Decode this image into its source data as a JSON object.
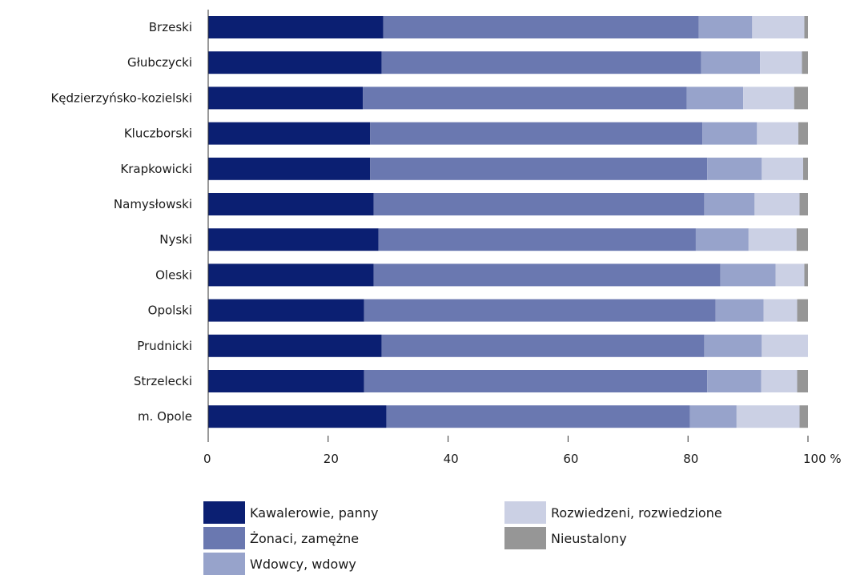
{
  "chart_data": {
    "type": "bar",
    "orientation": "horizontal",
    "stacked": true,
    "categories": [
      "Brzeski",
      "Głubczycki",
      "Kędzierzyńsko-kozielski",
      "Kluczborski",
      "Krapkowicki",
      "Namysłowski",
      "Nyski",
      "Oleski",
      "Opolski",
      "Prudnicki",
      "Strzelecki",
      "m. Opole"
    ],
    "series": [
      {
        "name": "Kawalerowie, panny",
        "color": "#0b1f72",
        "values": [
          29.2,
          28.9,
          25.8,
          27.0,
          27.0,
          27.6,
          28.4,
          27.6,
          26.0,
          28.9,
          26.0,
          29.7
        ]
      },
      {
        "name": "Żonaci, zamężne",
        "color": "#6a78b0",
        "values": [
          52.6,
          53.3,
          54.0,
          55.4,
          56.2,
          55.1,
          52.9,
          57.8,
          58.6,
          53.8,
          57.2,
          50.6
        ]
      },
      {
        "name": "Wdowcy, wdowy",
        "color": "#97a3cb",
        "values": [
          8.9,
          9.8,
          9.4,
          9.1,
          9.1,
          8.4,
          8.8,
          9.2,
          8.0,
          9.6,
          9.0,
          7.8
        ]
      },
      {
        "name": "Rozwiedzeni, rozwiedzione",
        "color": "#cbd0e4",
        "values": [
          8.7,
          7.0,
          8.5,
          6.9,
          6.9,
          7.5,
          8.0,
          4.8,
          5.6,
          7.7,
          6.0,
          10.5
        ]
      },
      {
        "name": "Nieustalony",
        "color": "#969696",
        "values": [
          0.6,
          1.0,
          2.3,
          1.6,
          0.8,
          1.4,
          1.9,
          0.6,
          1.8,
          0.0,
          1.8,
          1.4
        ]
      }
    ],
    "xlim": [
      0,
      100
    ],
    "xticks": [
      "0",
      "20",
      "40",
      "60",
      "80",
      "100 %"
    ],
    "grid": false,
    "legend_position": "bottom"
  }
}
